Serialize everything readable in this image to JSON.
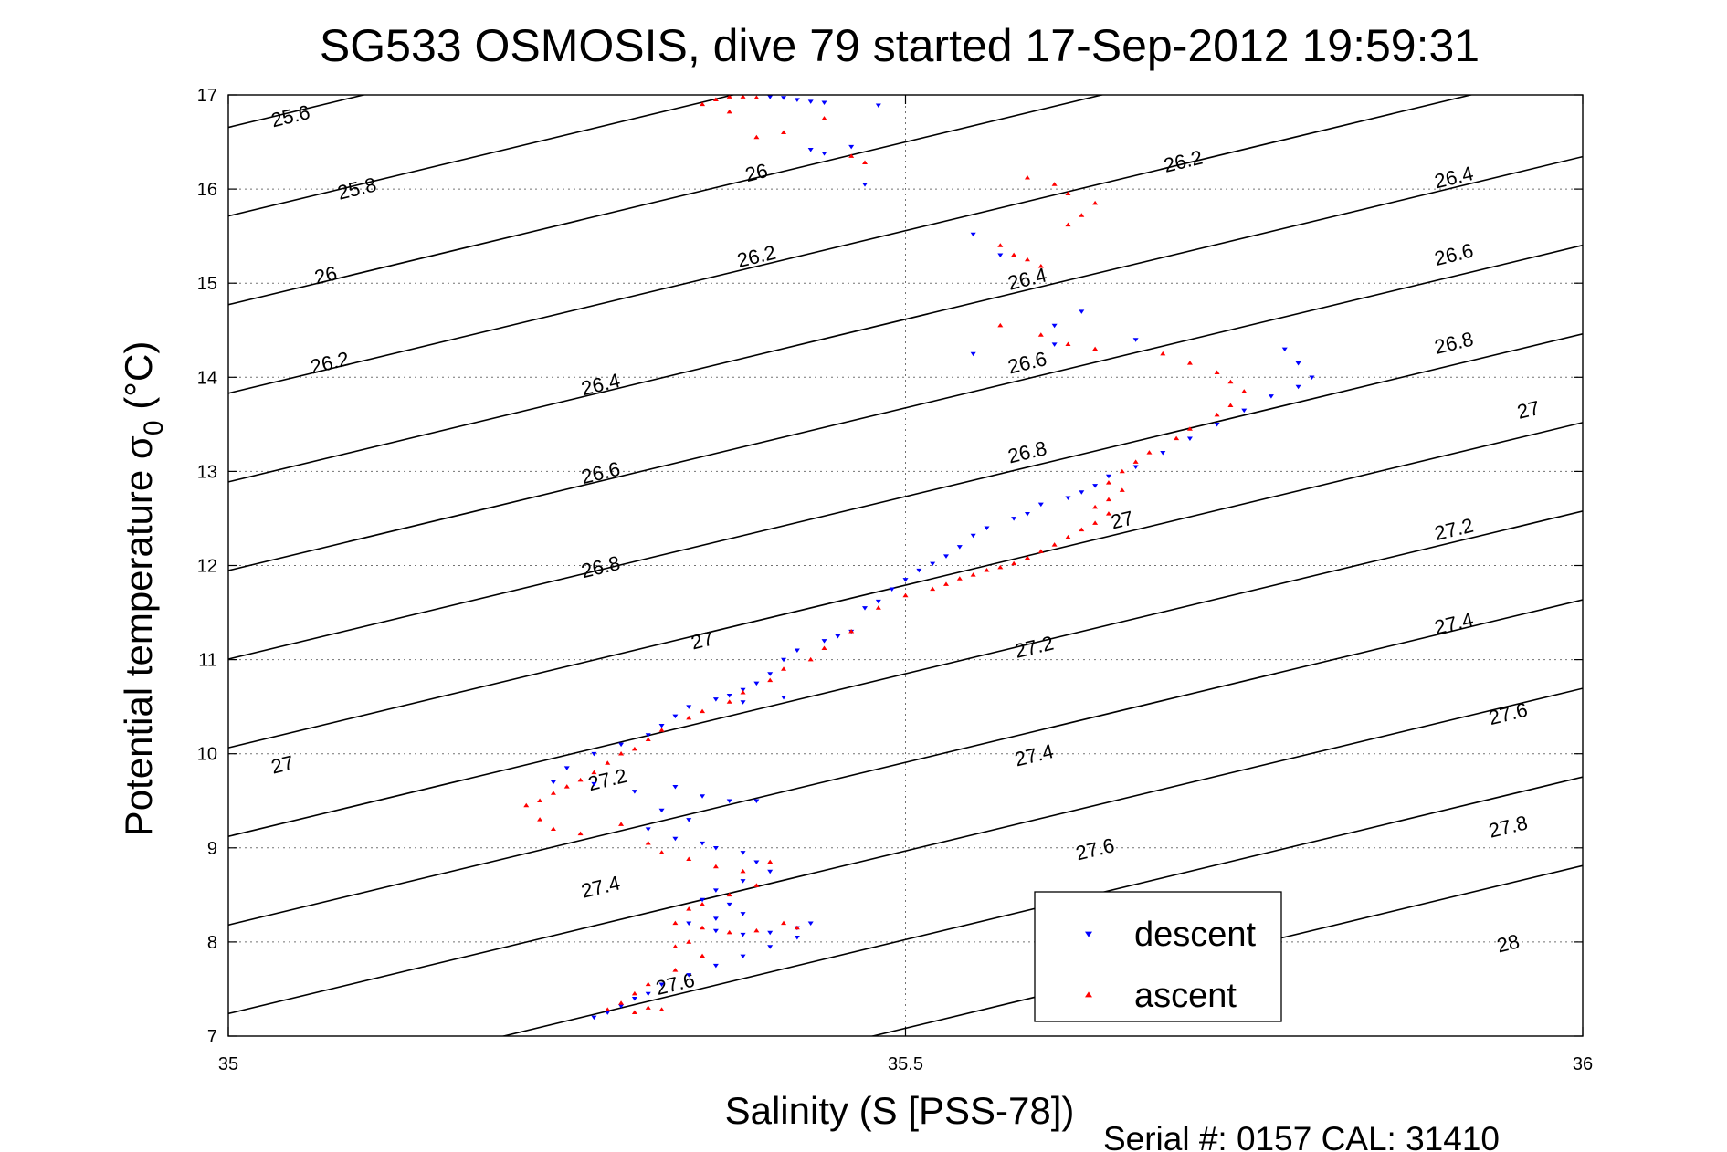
{
  "chart_data": {
    "type": "scatter",
    "title": "SG533 OSMOSIS, dive 79 started 17-Sep-2012 19:59:31",
    "xlabel": "Salinity (S [PSS-78])",
    "ylabel_main": "Potential temperature σ",
    "ylabel_sub": "0",
    "ylabel_unit": " (°C)",
    "footer": "Serial #: 0157  CAL: 31410",
    "xlim": [
      35,
      36
    ],
    "ylim": [
      7,
      17
    ],
    "xticks": [
      35,
      35.5,
      36
    ],
    "xtick_labels": [
      "35",
      "35.5",
      "36"
    ],
    "yticks": [
      7,
      8,
      9,
      10,
      11,
      12,
      13,
      14,
      15,
      16,
      17
    ],
    "ytick_labels": [
      "7",
      "8",
      "9",
      "10",
      "11",
      "12",
      "13",
      "14",
      "15",
      "16",
      "17"
    ],
    "grid": true,
    "legend_position": "bottom-right",
    "contours": {
      "levels": [
        25.6,
        25.8,
        26,
        26.2,
        26.4,
        26.6,
        26.8,
        27,
        27.2,
        27.4,
        27.6,
        27.8,
        28
      ],
      "labels": [
        {
          "text": "25.6",
          "x": 35.046,
          "y": 16.77
        },
        {
          "text": "25.8",
          "x": 35.095,
          "y": 16.0
        },
        {
          "text": "26",
          "x": 35.072,
          "y": 15.08
        },
        {
          "text": "26.2",
          "x": 35.075,
          "y": 14.15
        },
        {
          "text": "26.4",
          "x": 35.275,
          "y": 13.92
        },
        {
          "text": "26.6",
          "x": 35.275,
          "y": 12.98
        },
        {
          "text": "26.8",
          "x": 35.275,
          "y": 11.98
        },
        {
          "text": "27",
          "x": 35.35,
          "y": 11.2
        },
        {
          "text": "27",
          "x": 35.04,
          "y": 9.88
        },
        {
          "text": "27.2",
          "x": 35.28,
          "y": 9.72
        },
        {
          "text": "27.4",
          "x": 35.275,
          "y": 8.58
        },
        {
          "text": "27.6",
          "x": 35.33,
          "y": 7.55
        },
        {
          "text": "26",
          "x": 35.39,
          "y": 16.17
        },
        {
          "text": "26.2",
          "x": 35.39,
          "y": 15.28
        },
        {
          "text": "26.4",
          "x": 35.59,
          "y": 15.04
        },
        {
          "text": "26.6",
          "x": 35.59,
          "y": 14.15
        },
        {
          "text": "26.8",
          "x": 35.59,
          "y": 13.2
        },
        {
          "text": "27",
          "x": 35.66,
          "y": 12.48
        },
        {
          "text": "27.2",
          "x": 35.595,
          "y": 11.13
        },
        {
          "text": "27.4",
          "x": 35.595,
          "y": 9.98
        },
        {
          "text": "27.6",
          "x": 35.64,
          "y": 8.98
        },
        {
          "text": "26.2",
          "x": 35.705,
          "y": 16.29
        },
        {
          "text": "26.4",
          "x": 35.905,
          "y": 16.12
        },
        {
          "text": "26.6",
          "x": 35.905,
          "y": 15.3
        },
        {
          "text": "26.8",
          "x": 35.905,
          "y": 14.36
        },
        {
          "text": "27",
          "x": 35.96,
          "y": 13.65
        },
        {
          "text": "27.2",
          "x": 35.905,
          "y": 12.38
        },
        {
          "text": "27.4",
          "x": 35.905,
          "y": 11.38
        },
        {
          "text": "27.6",
          "x": 35.945,
          "y": 10.42
        },
        {
          "text": "27.8",
          "x": 35.945,
          "y": 9.22
        },
        {
          "text": "28",
          "x": 35.945,
          "y": 7.98
        }
      ]
    },
    "series": [
      {
        "name": "descent",
        "color": "#0000ff",
        "marker": "triangle-down",
        "points": [
          [
            35.4,
            16.98
          ],
          [
            35.41,
            16.97
          ],
          [
            35.42,
            16.95
          ],
          [
            35.43,
            16.93
          ],
          [
            35.44,
            16.92
          ],
          [
            35.48,
            16.89
          ],
          [
            35.43,
            16.42
          ],
          [
            35.44,
            16.38
          ],
          [
            35.46,
            16.45
          ],
          [
            35.47,
            16.05
          ],
          [
            35.55,
            15.52
          ],
          [
            35.57,
            15.3
          ],
          [
            35.61,
            14.55
          ],
          [
            35.63,
            14.7
          ],
          [
            35.61,
            14.35
          ],
          [
            35.55,
            14.25
          ],
          [
            35.67,
            14.4
          ],
          [
            35.78,
            14.3
          ],
          [
            35.79,
            14.15
          ],
          [
            35.8,
            14.0
          ],
          [
            35.79,
            13.9
          ],
          [
            35.77,
            13.8
          ],
          [
            35.75,
            13.65
          ],
          [
            35.73,
            13.5
          ],
          [
            35.71,
            13.35
          ],
          [
            35.69,
            13.2
          ],
          [
            35.67,
            13.05
          ],
          [
            35.65,
            12.95
          ],
          [
            35.64,
            12.85
          ],
          [
            35.63,
            12.78
          ],
          [
            35.62,
            12.72
          ],
          [
            35.6,
            12.65
          ],
          [
            35.59,
            12.55
          ],
          [
            35.58,
            12.5
          ],
          [
            35.56,
            12.4
          ],
          [
            35.55,
            12.32
          ],
          [
            35.54,
            12.2
          ],
          [
            35.53,
            12.1
          ],
          [
            35.52,
            12.02
          ],
          [
            35.51,
            11.95
          ],
          [
            35.5,
            11.85
          ],
          [
            35.49,
            11.75
          ],
          [
            35.48,
            11.62
          ],
          [
            35.47,
            11.55
          ],
          [
            35.46,
            11.3
          ],
          [
            35.45,
            11.25
          ],
          [
            35.44,
            11.2
          ],
          [
            35.42,
            11.1
          ],
          [
            35.41,
            11.0
          ],
          [
            35.4,
            10.85
          ],
          [
            35.39,
            10.75
          ],
          [
            35.38,
            10.68
          ],
          [
            35.37,
            10.62
          ],
          [
            35.36,
            10.58
          ],
          [
            35.34,
            10.5
          ],
          [
            35.38,
            10.55
          ],
          [
            35.41,
            10.6
          ],
          [
            35.33,
            10.4
          ],
          [
            35.32,
            10.3
          ],
          [
            35.31,
            10.2
          ],
          [
            35.29,
            10.1
          ],
          [
            35.27,
            10.0
          ],
          [
            35.25,
            9.85
          ],
          [
            35.24,
            9.7
          ],
          [
            35.27,
            9.68
          ],
          [
            35.3,
            9.6
          ],
          [
            35.33,
            9.65
          ],
          [
            35.35,
            9.55
          ],
          [
            35.37,
            9.5
          ],
          [
            35.39,
            9.5
          ],
          [
            35.32,
            9.4
          ],
          [
            35.34,
            9.3
          ],
          [
            35.31,
            9.2
          ],
          [
            35.33,
            9.1
          ],
          [
            35.35,
            9.05
          ],
          [
            35.36,
            9.0
          ],
          [
            35.38,
            8.95
          ],
          [
            35.39,
            8.85
          ],
          [
            35.4,
            8.75
          ],
          [
            35.38,
            8.65
          ],
          [
            35.36,
            8.55
          ],
          [
            35.35,
            8.45
          ],
          [
            35.37,
            8.4
          ],
          [
            35.38,
            8.3
          ],
          [
            35.36,
            8.25
          ],
          [
            35.34,
            8.2
          ],
          [
            35.36,
            8.12
          ],
          [
            35.38,
            8.08
          ],
          [
            35.4,
            8.1
          ],
          [
            35.42,
            8.15
          ],
          [
            35.43,
            8.2
          ],
          [
            35.42,
            8.05
          ],
          [
            35.4,
            7.95
          ],
          [
            35.38,
            7.85
          ],
          [
            35.36,
            7.75
          ],
          [
            35.34,
            7.65
          ],
          [
            35.32,
            7.55
          ],
          [
            35.31,
            7.45
          ],
          [
            35.3,
            7.4
          ],
          [
            35.29,
            7.32
          ],
          [
            35.28,
            7.25
          ],
          [
            35.27,
            7.2
          ]
        ]
      },
      {
        "name": "ascent",
        "color": "#ff0000",
        "marker": "triangle-up",
        "points": [
          [
            35.35,
            16.9
          ],
          [
            35.36,
            16.95
          ],
          [
            35.37,
            16.98
          ],
          [
            35.38,
            16.98
          ],
          [
            35.39,
            16.97
          ],
          [
            35.37,
            16.82
          ],
          [
            35.39,
            16.55
          ],
          [
            35.41,
            16.6
          ],
          [
            35.44,
            16.75
          ],
          [
            35.46,
            16.35
          ],
          [
            35.47,
            16.28
          ],
          [
            35.59,
            16.12
          ],
          [
            35.61,
            16.05
          ],
          [
            35.62,
            15.95
          ],
          [
            35.64,
            15.85
          ],
          [
            35.63,
            15.72
          ],
          [
            35.62,
            15.62
          ],
          [
            35.57,
            15.4
          ],
          [
            35.58,
            15.3
          ],
          [
            35.59,
            15.25
          ],
          [
            35.6,
            15.18
          ],
          [
            35.57,
            14.55
          ],
          [
            35.6,
            14.45
          ],
          [
            35.62,
            14.35
          ],
          [
            35.64,
            14.3
          ],
          [
            35.69,
            14.25
          ],
          [
            35.71,
            14.15
          ],
          [
            35.73,
            14.05
          ],
          [
            35.74,
            13.95
          ],
          [
            35.75,
            13.85
          ],
          [
            35.74,
            13.7
          ],
          [
            35.73,
            13.6
          ],
          [
            35.71,
            13.45
          ],
          [
            35.7,
            13.35
          ],
          [
            35.68,
            13.2
          ],
          [
            35.67,
            13.1
          ],
          [
            35.66,
            13.0
          ],
          [
            35.65,
            12.88
          ],
          [
            35.66,
            12.8
          ],
          [
            35.65,
            12.7
          ],
          [
            35.64,
            12.62
          ],
          [
            35.65,
            12.55
          ],
          [
            35.64,
            12.45
          ],
          [
            35.63,
            12.38
          ],
          [
            35.62,
            12.3
          ],
          [
            35.61,
            12.22
          ],
          [
            35.6,
            12.15
          ],
          [
            35.59,
            12.08
          ],
          [
            35.58,
            12.02
          ],
          [
            35.57,
            11.98
          ],
          [
            35.56,
            11.95
          ],
          [
            35.55,
            11.9
          ],
          [
            35.54,
            11.86
          ],
          [
            35.53,
            11.8
          ],
          [
            35.52,
            11.75
          ],
          [
            35.5,
            11.68
          ],
          [
            35.48,
            11.55
          ],
          [
            35.46,
            11.3
          ],
          [
            35.44,
            11.12
          ],
          [
            35.43,
            11.0
          ],
          [
            35.41,
            10.9
          ],
          [
            35.4,
            10.78
          ],
          [
            35.38,
            10.65
          ],
          [
            35.37,
            10.55
          ],
          [
            35.35,
            10.45
          ],
          [
            35.34,
            10.38
          ],
          [
            35.32,
            10.25
          ],
          [
            35.31,
            10.15
          ],
          [
            35.3,
            10.05
          ],
          [
            35.29,
            10.0
          ],
          [
            35.28,
            9.9
          ],
          [
            35.27,
            9.8
          ],
          [
            35.26,
            9.72
          ],
          [
            35.25,
            9.65
          ],
          [
            35.24,
            9.58
          ],
          [
            35.23,
            9.5
          ],
          [
            35.22,
            9.45
          ],
          [
            35.23,
            9.3
          ],
          [
            35.24,
            9.2
          ],
          [
            35.26,
            9.15
          ],
          [
            35.29,
            9.25
          ],
          [
            35.31,
            9.05
          ],
          [
            35.32,
            8.95
          ],
          [
            35.34,
            8.88
          ],
          [
            35.36,
            8.8
          ],
          [
            35.38,
            8.75
          ],
          [
            35.4,
            8.85
          ],
          [
            35.39,
            8.6
          ],
          [
            35.37,
            8.5
          ],
          [
            35.35,
            8.4
          ],
          [
            35.34,
            8.35
          ],
          [
            35.33,
            8.2
          ],
          [
            35.35,
            8.15
          ],
          [
            35.37,
            8.1
          ],
          [
            35.39,
            8.12
          ],
          [
            35.41,
            8.2
          ],
          [
            35.42,
            8.15
          ],
          [
            35.34,
            8.0
          ],
          [
            35.33,
            7.95
          ],
          [
            35.35,
            7.85
          ],
          [
            35.33,
            7.7
          ],
          [
            35.31,
            7.55
          ],
          [
            35.3,
            7.45
          ],
          [
            35.29,
            7.35
          ],
          [
            35.28,
            7.28
          ],
          [
            35.3,
            7.25
          ],
          [
            35.31,
            7.3
          ],
          [
            35.32,
            7.28
          ]
        ]
      }
    ]
  }
}
